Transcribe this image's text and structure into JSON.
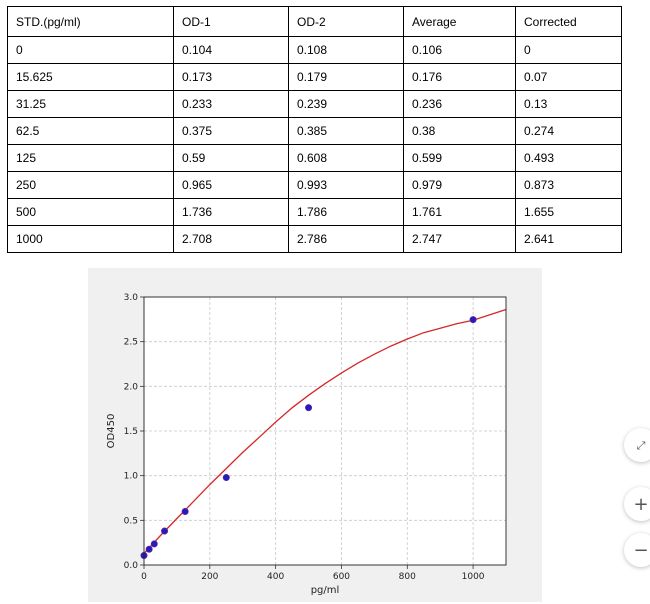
{
  "table": {
    "headers": [
      "STD.(pg/ml)",
      "OD-1",
      "OD-2",
      "Average",
      "Corrected"
    ],
    "rows": [
      [
        "0",
        "0.104",
        "0.108",
        "0.106",
        "0"
      ],
      [
        "15.625",
        "0.173",
        "0.179",
        "0.176",
        "0.07"
      ],
      [
        "31.25",
        "0.233",
        "0.239",
        "0.236",
        "0.13"
      ],
      [
        "62.5",
        "0.375",
        "0.385",
        "0.38",
        "0.274"
      ],
      [
        "125",
        "0.59",
        "0.608",
        "0.599",
        "0.493"
      ],
      [
        "250",
        "0.965",
        "0.993",
        "0.979",
        "0.873"
      ],
      [
        "500",
        "1.736",
        "1.786",
        "1.761",
        "1.655"
      ],
      [
        "1000",
        "2.708",
        "2.786",
        "2.747",
        "2.641"
      ]
    ]
  },
  "chart_data": {
    "type": "scatter",
    "xlabel": "pg/ml",
    "ylabel": "OD450",
    "xlim": [
      0,
      1100
    ],
    "ylim": [
      0,
      3.0
    ],
    "x_ticks": [
      "0",
      "200",
      "400",
      "600",
      "800",
      "1000"
    ],
    "y_ticks": [
      "0.0",
      "0.5",
      "1.0",
      "1.5",
      "2.0",
      "2.5",
      "3.0"
    ],
    "grid": true,
    "series": [
      {
        "color": "#1f1fbf",
        "x": [
          0,
          15.625,
          31.25,
          62.5,
          125,
          250,
          500,
          1000
        ],
        "y": [
          0.106,
          0.176,
          0.236,
          0.38,
          0.599,
          0.979,
          1.761,
          2.747
        ]
      }
    ],
    "fit_curve": {
      "color": "#d62728",
      "x": [
        0,
        50,
        100,
        150,
        200,
        250,
        300,
        350,
        400,
        450,
        500,
        550,
        600,
        650,
        700,
        750,
        800,
        850,
        900,
        950,
        1000,
        1050,
        1100
      ],
      "y": [
        0.13,
        0.33,
        0.52,
        0.71,
        0.9,
        1.08,
        1.26,
        1.43,
        1.6,
        1.76,
        1.9,
        2.03,
        2.15,
        2.26,
        2.36,
        2.45,
        2.53,
        2.6,
        2.65,
        2.7,
        2.74,
        2.8,
        2.86
      ]
    }
  },
  "side_buttons": {
    "expand_icon": "expand-icon",
    "zoom_in_label": "+",
    "zoom_out_label": "−"
  }
}
